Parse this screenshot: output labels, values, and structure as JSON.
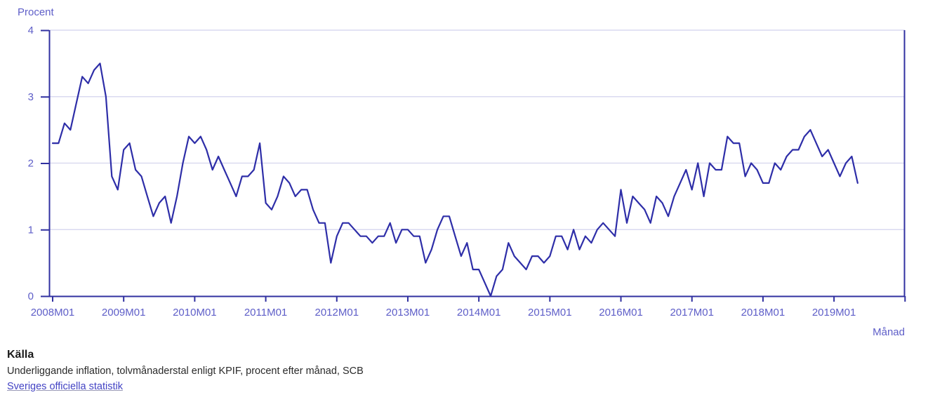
{
  "chart": {
    "y_axis_title": "Procent",
    "x_axis_title": "Månad"
  },
  "chart_data": {
    "type": "line",
    "title": "",
    "xlabel": "Månad",
    "ylabel": "Procent",
    "ylim": [
      0,
      4
    ],
    "y_ticks": [
      0,
      1,
      2,
      3,
      4
    ],
    "grid": "horizontal",
    "legend_position": "none",
    "x_tick_labels": [
      "2008M01",
      "2009M01",
      "2010M01",
      "2011M01",
      "2012M01",
      "2013M01",
      "2014M01",
      "2015M01",
      "2016M01",
      "2017M01",
      "2018M01",
      "2019M01"
    ],
    "x_start": "2008M01",
    "x_end": "2019M05",
    "series": [
      {
        "name": "Underliggande inflation, tolvmånaderstal enligt KPIF",
        "values": [
          2.3,
          2.3,
          2.6,
          2.5,
          2.9,
          3.3,
          3.2,
          3.4,
          3.5,
          3.0,
          1.8,
          1.6,
          2.2,
          2.3,
          1.9,
          1.8,
          1.5,
          1.2,
          1.4,
          1.5,
          1.1,
          1.5,
          2.0,
          2.4,
          2.3,
          2.4,
          2.2,
          1.9,
          2.1,
          1.9,
          1.7,
          1.5,
          1.8,
          1.8,
          1.9,
          2.3,
          1.4,
          1.3,
          1.5,
          1.8,
          1.7,
          1.5,
          1.6,
          1.6,
          1.3,
          1.1,
          1.1,
          0.5,
          0.9,
          1.1,
          1.1,
          1.0,
          0.9,
          0.9,
          0.8,
          0.9,
          0.9,
          1.1,
          0.8,
          1.0,
          1.0,
          0.9,
          0.9,
          0.5,
          0.7,
          1.0,
          1.2,
          1.2,
          0.9,
          0.6,
          0.8,
          0.4,
          0.4,
          0.2,
          0.0,
          0.3,
          0.4,
          0.8,
          0.6,
          0.5,
          0.4,
          0.6,
          0.6,
          0.5,
          0.6,
          0.9,
          0.9,
          0.7,
          1.0,
          0.7,
          0.9,
          0.8,
          1.0,
          1.1,
          1.0,
          0.9,
          1.6,
          1.1,
          1.5,
          1.4,
          1.3,
          1.1,
          1.5,
          1.4,
          1.2,
          1.5,
          1.7,
          1.9,
          1.6,
          2.0,
          1.5,
          2.0,
          1.9,
          1.9,
          2.4,
          2.3,
          2.3,
          1.8,
          2.0,
          1.9,
          1.7,
          1.7,
          2.0,
          1.9,
          2.1,
          2.2,
          2.2,
          2.4,
          2.5,
          2.3,
          2.1,
          2.2,
          2.0,
          1.8,
          2.0,
          2.1,
          1.7
        ]
      }
    ]
  },
  "colors": {
    "line": "#2e2ea8",
    "axis": "#3030a0",
    "grid": "#dadaf0",
    "tick_text": "#5e5ec8",
    "link": "#4343c4",
    "footer_text": "#2a2a2a",
    "background": "#ffffff"
  },
  "footer": {
    "heading": "Källa",
    "source_line": "Underliggande inflation, tolvmånaderstal enligt KPIF, procent efter månad, SCB",
    "link_text": "Sveriges officiella statistik"
  }
}
